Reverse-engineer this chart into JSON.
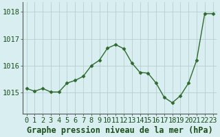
{
  "x": [
    0,
    1,
    2,
    3,
    4,
    5,
    6,
    7,
    8,
    9,
    10,
    11,
    12,
    13,
    14,
    15,
    16,
    17,
    18,
    19,
    20,
    21,
    22,
    23
  ],
  "y": [
    1015.15,
    1015.05,
    1015.15,
    1015.02,
    1015.02,
    1015.35,
    1015.45,
    1015.6,
    1016.0,
    1016.2,
    1016.65,
    1016.78,
    1016.63,
    1016.1,
    1015.75,
    1015.72,
    1015.35,
    1014.82,
    1014.62,
    1014.88,
    1015.35,
    1016.2,
    1017.93,
    1017.93
  ],
  "line_color": "#2d6a2d",
  "marker": "D",
  "markersize": 2.5,
  "linewidth": 1.0,
  "bg_color": "#d8eef0",
  "grid_color": "#b8cece",
  "xlabel": "Graphe pression niveau de la mer (hPa)",
  "xlabel_fontsize": 8.5,
  "yticks": [
    1015,
    1016,
    1017,
    1018
  ],
  "xticks": [
    0,
    1,
    2,
    3,
    4,
    5,
    6,
    7,
    8,
    9,
    10,
    11,
    12,
    13,
    14,
    15,
    16,
    17,
    18,
    19,
    20,
    21,
    22,
    23
  ],
  "ylim": [
    1014.2,
    1018.35
  ],
  "xlim": [
    -0.5,
    23.5
  ],
  "tick_fontsize": 7.5,
  "spine_color": "#555555",
  "label_color": "#1a4f1a"
}
